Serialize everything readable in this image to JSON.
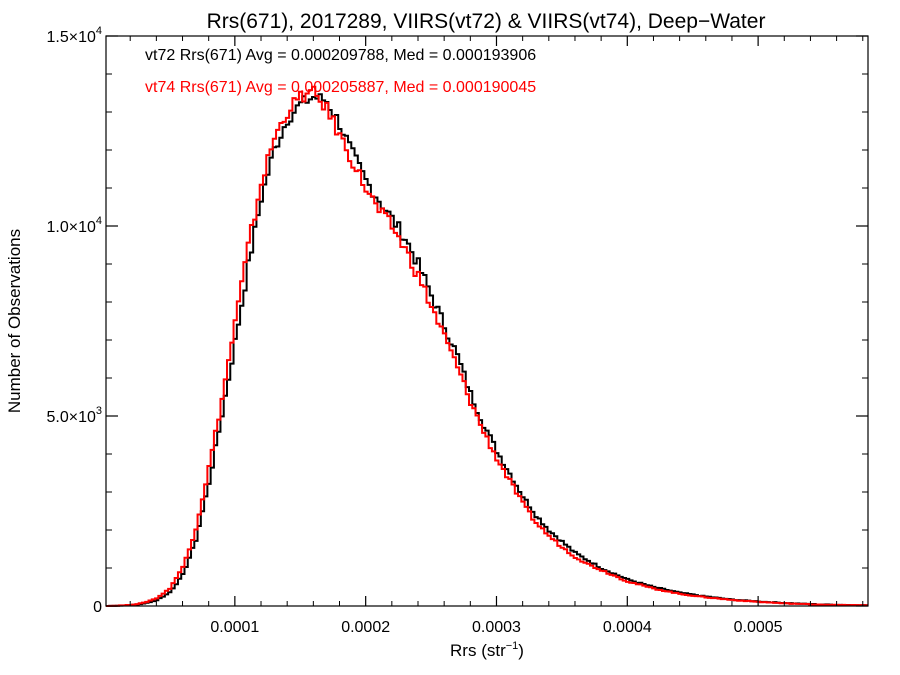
{
  "chart_data": {
    "type": "line",
    "step": true,
    "title": "Rrs(671), 2017289, VIIRS(vt72) & VIIRS(vt74), Deep−Water",
    "xlabel": "Rrs (str",
    "xlabel_sup": "−1",
    "xlabel_close": ")",
    "ylabel": "Number of Observations",
    "xlim": [
      1.5e-06,
      0.000584
    ],
    "ylim": [
      0,
      15000
    ],
    "x_ticks": [
      0.0001,
      0.0002,
      0.0003,
      0.0004,
      0.0005
    ],
    "x_tick_labels": [
      "0.0001",
      "0.0002",
      "0.0003",
      "0.0004",
      "0.0005"
    ],
    "y_ticks": [
      0,
      5000,
      10000,
      15000
    ],
    "y_tick_labels": [
      {
        "mant": "0",
        "exp": ""
      },
      {
        "mant": "5.0×10",
        "exp": "3"
      },
      {
        "mant": "1.0×10",
        "exp": "4"
      },
      {
        "mant": "1.5×10",
        "exp": "4"
      }
    ],
    "series": [
      {
        "name": "vt72",
        "color": "#000000",
        "annotation": "vt72 Rrs(671) Avg = 0.000209788, Med = 0.000193906",
        "points": [
          [
            2e-06,
            0
          ],
          [
            2e-05,
            20
          ],
          [
            3e-05,
            60
          ],
          [
            4e-05,
            150
          ],
          [
            5e-05,
            350
          ],
          [
            6e-05,
            800
          ],
          [
            7e-05,
            1700
          ],
          [
            8e-05,
            3200
          ],
          [
            9e-05,
            5000
          ],
          [
            0.0001,
            6900
          ],
          [
            0.00011,
            8900
          ],
          [
            0.00012,
            10700
          ],
          [
            0.00013,
            12000
          ],
          [
            0.00014,
            12800
          ],
          [
            0.00015,
            13200
          ],
          [
            0.00016,
            13400
          ],
          [
            0.00017,
            13300
          ],
          [
            0.00018,
            12700
          ],
          [
            0.00019,
            11900
          ],
          [
            0.0002,
            11200
          ],
          [
            0.00021,
            10700
          ],
          [
            0.00022,
            10200
          ],
          [
            0.00023,
            9700
          ],
          [
            0.00024,
            9000
          ],
          [
            0.00025,
            8200
          ],
          [
            0.00026,
            7400
          ],
          [
            0.00027,
            6600
          ],
          [
            0.00028,
            5600
          ],
          [
            0.00029,
            4800
          ],
          [
            0.0003,
            4100
          ],
          [
            0.00031,
            3500
          ],
          [
            0.00032,
            2900
          ],
          [
            0.00033,
            2400
          ],
          [
            0.00034,
            2000
          ],
          [
            0.00035,
            1700
          ],
          [
            0.00036,
            1400
          ],
          [
            0.00037,
            1200
          ],
          [
            0.00038,
            1000
          ],
          [
            0.00039,
            850
          ],
          [
            0.0004,
            700
          ],
          [
            0.00042,
            500
          ],
          [
            0.00044,
            350
          ],
          [
            0.00046,
            250
          ],
          [
            0.00048,
            170
          ],
          [
            0.0005,
            120
          ],
          [
            0.00052,
            80
          ],
          [
            0.00054,
            50
          ],
          [
            0.00056,
            30
          ],
          [
            0.000584,
            20
          ]
        ]
      },
      {
        "name": "vt74",
        "color": "#ff0000",
        "annotation": "vt74 Rrs(671) Avg = 0.000205887, Med = 0.000190045",
        "points": [
          [
            2e-06,
            0
          ],
          [
            2e-05,
            25
          ],
          [
            3e-05,
            80
          ],
          [
            4e-05,
            200
          ],
          [
            5e-05,
            450
          ],
          [
            6e-05,
            1000
          ],
          [
            7e-05,
            2000
          ],
          [
            8e-05,
            3600
          ],
          [
            9e-05,
            5400
          ],
          [
            0.0001,
            7400
          ],
          [
            0.00011,
            9400
          ],
          [
            0.00012,
            11100
          ],
          [
            0.00013,
            12300
          ],
          [
            0.00014,
            13000
          ],
          [
            0.00015,
            13400
          ],
          [
            0.00016,
            13500
          ],
          [
            0.00017,
            13100
          ],
          [
            0.00018,
            12400
          ],
          [
            0.00019,
            11700
          ],
          [
            0.0002,
            11000
          ],
          [
            0.00021,
            10400
          ],
          [
            0.00022,
            10000
          ],
          [
            0.00023,
            9400
          ],
          [
            0.00024,
            8700
          ],
          [
            0.00025,
            7900
          ],
          [
            0.00026,
            7100
          ],
          [
            0.00027,
            6300
          ],
          [
            0.00028,
            5400
          ],
          [
            0.00029,
            4600
          ],
          [
            0.0003,
            3900
          ],
          [
            0.00031,
            3300
          ],
          [
            0.00032,
            2700
          ],
          [
            0.00033,
            2200
          ],
          [
            0.00034,
            1850
          ],
          [
            0.00035,
            1550
          ],
          [
            0.00036,
            1300
          ],
          [
            0.00037,
            1100
          ],
          [
            0.00038,
            950
          ],
          [
            0.00039,
            800
          ],
          [
            0.0004,
            650
          ],
          [
            0.00042,
            460
          ],
          [
            0.00044,
            320
          ],
          [
            0.00046,
            230
          ],
          [
            0.00048,
            160
          ],
          [
            0.0005,
            110
          ],
          [
            0.00052,
            70
          ],
          [
            0.00054,
            45
          ],
          [
            0.00056,
            28
          ],
          [
            0.000584,
            18
          ]
        ]
      }
    ]
  }
}
